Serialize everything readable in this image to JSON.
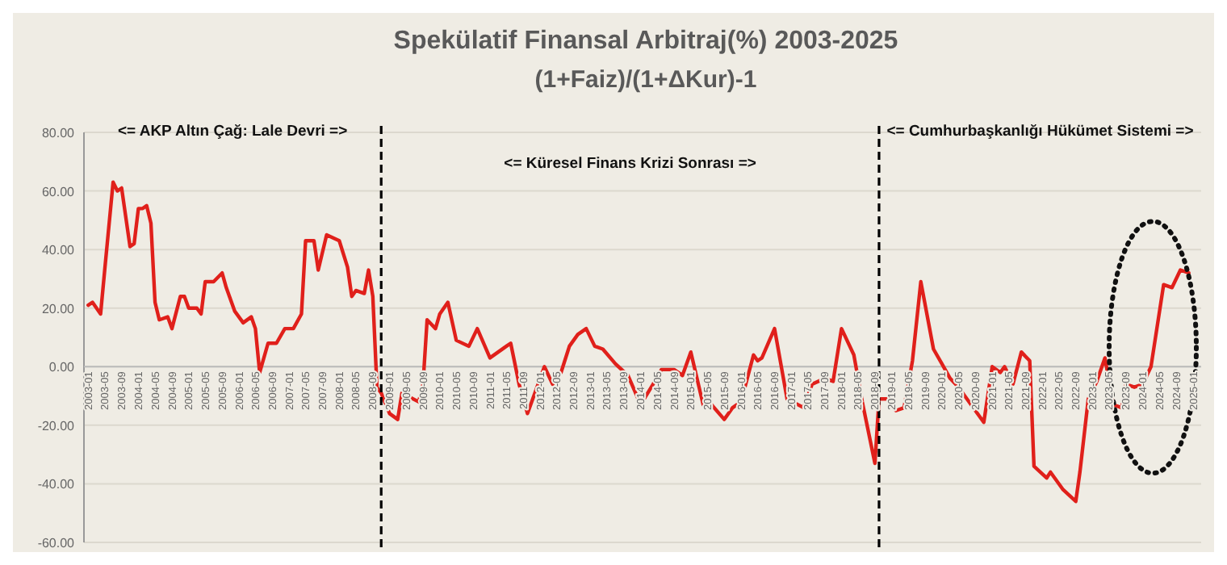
{
  "chart_data": {
    "type": "line",
    "title": "Spekülatif Finansal Arbitraj(%) 2003-2025",
    "subtitle": "(1+Faiz)/(1+ΔKur)-1",
    "annotations": [
      "<= AKP Altın Çağ: Lale Devri =>",
      "<= Küresel Finans Krizi Sonrası =>",
      "<= Cumhurbaşkanlığı Hükümet Sistemi =>"
    ],
    "x": [
      "2003-01",
      "2003-02",
      "2003-04",
      "2003-05",
      "2003-07",
      "2003-08",
      "2003-09",
      "2003-11",
      "2003-12",
      "2004-01",
      "2004-02",
      "2004-03",
      "2004-04",
      "2004-05",
      "2004-06",
      "2004-08",
      "2004-09",
      "2004-11",
      "2004-12",
      "2005-01",
      "2005-03",
      "2005-04",
      "2005-05",
      "2005-07",
      "2005-09",
      "2005-10",
      "2005-12",
      "2006-02",
      "2006-04",
      "2006-05",
      "2006-06",
      "2006-08",
      "2006-10",
      "2006-12",
      "2007-02",
      "2007-04",
      "2007-05",
      "2007-07",
      "2007-08",
      "2007-10",
      "2008-01",
      "2008-03",
      "2008-04",
      "2008-05",
      "2008-07",
      "2008-08",
      "2008-09",
      "2008-10",
      "2008-11",
      "2009-01",
      "2009-03",
      "2009-04",
      "2009-08",
      "2009-09",
      "2009-10",
      "2009-12",
      "2010-01",
      "2010-03",
      "2010-05",
      "2010-08",
      "2010-10",
      "2011-01",
      "2011-05",
      "2011-06",
      "2011-08",
      "2011-10",
      "2012-02",
      "2012-04",
      "2012-06",
      "2012-08",
      "2012-10",
      "2012-12",
      "2013-02",
      "2013-04",
      "2013-07",
      "2013-10",
      "2014-01",
      "2014-04",
      "2014-06",
      "2014-09",
      "2014-11",
      "2015-01",
      "2015-04",
      "2015-06",
      "2015-09",
      "2015-11",
      "2016-01",
      "2016-04",
      "2016-05",
      "2016-06",
      "2016-09",
      "2016-12",
      "2017-04",
      "2017-06",
      "2017-09",
      "2017-11",
      "2018-01",
      "2018-04",
      "2018-06",
      "2018-09",
      "2018-10",
      "2018-12",
      "2019-02",
      "2019-04",
      "2019-06",
      "2019-08",
      "2019-11",
      "2020-01",
      "2020-03",
      "2020-05",
      "2020-08",
      "2020-11",
      "2021-01",
      "2021-03",
      "2021-04",
      "2021-06",
      "2021-08",
      "2021-10",
      "2021-11",
      "2022-02",
      "2022-03",
      "2022-06",
      "2022-09",
      "2022-10",
      "2022-12",
      "2023-02",
      "2023-04",
      "2023-06",
      "2023-08",
      "2023-09",
      "2023-11",
      "2024-01",
      "2024-03",
      "2024-06",
      "2024-08",
      "2024-10",
      "2024-12"
    ],
    "series": [
      {
        "color": "#e0201b",
        "values": [
          21,
          22,
          18,
          33,
          63,
          60,
          61,
          41,
          42,
          54,
          54,
          55,
          49,
          22,
          16,
          17,
          13,
          24,
          24,
          20,
          20,
          18,
          29,
          29,
          32,
          27,
          19,
          15,
          17,
          13,
          -2,
          8,
          8,
          13,
          13,
          18,
          43,
          43,
          33,
          45,
          43,
          34,
          24,
          26,
          25,
          33,
          24,
          -7,
          -9,
          -16,
          -18,
          -9,
          -12,
          -6,
          16,
          13,
          18,
          22,
          9,
          7,
          13,
          3,
          7,
          8,
          -6,
          -16,
          0,
          -6,
          -2,
          7,
          11,
          13,
          7,
          6,
          1,
          -3,
          -13,
          -6,
          -1,
          -1,
          -3,
          5,
          -13,
          -13,
          -18,
          -14,
          -12,
          4,
          2,
          3,
          13,
          -11,
          -14,
          -6,
          -4,
          -5,
          13,
          4,
          -12,
          -33,
          -11,
          -11,
          -15,
          -14,
          2,
          29,
          6,
          1,
          -4,
          -7,
          -13,
          -19,
          0,
          -2,
          0,
          -6,
          5,
          2,
          -34,
          -38,
          -36,
          -42,
          -46,
          -36,
          -11,
          -5,
          3,
          -13,
          -14,
          -6,
          -7,
          -6,
          0,
          28,
          27,
          33,
          32
        ]
      }
    ],
    "xlim": [
      "2002-12",
      "2025-03"
    ],
    "xticks": [
      "2003-01",
      "2003-05",
      "2003-09",
      "2004-01",
      "2004-05",
      "2004-09",
      "2005-01",
      "2005-05",
      "2005-09",
      "2006-01",
      "2006-05",
      "2006-09",
      "2007-01",
      "2007-05",
      "2007-09",
      "2008-01",
      "2008-05",
      "2008-09",
      "2009-01",
      "2009-05",
      "2009-09",
      "2010-01",
      "2010-05",
      "2010-09",
      "2011-01",
      "2011-05",
      "2011-09",
      "2012-01",
      "2012-05",
      "2012-09",
      "2013-01",
      "2013-05",
      "2013-09",
      "2014-01",
      "2014-05",
      "2014-09",
      "2015-01",
      "2015-05",
      "2015-09",
      "2016-01",
      "2016-05",
      "2016-09",
      "2017-01",
      "2017-05",
      "2017-09",
      "2018-01",
      "2018-05",
      "2018-09",
      "2019-01",
      "2019-05",
      "2019-09",
      "2020-01",
      "2020-05",
      "2020-09",
      "2021-01",
      "2021-05",
      "2021-09",
      "2022-01",
      "2022-05",
      "2022-09",
      "2023-01",
      "2023-05",
      "2023-09",
      "2024-01",
      "2024-05",
      "2024-09",
      "2025-01"
    ],
    "ylim": [
      -60,
      80
    ],
    "yticks": [
      {
        "value": -60,
        "label": "-60.00"
      },
      {
        "value": -40,
        "label": "-40.00"
      },
      {
        "value": -20,
        "label": "-20.00"
      },
      {
        "value": 0,
        "label": "0.00"
      },
      {
        "value": 20,
        "label": "20.00"
      },
      {
        "value": 40,
        "label": "40.00"
      },
      {
        "value": 60,
        "label": "60.00"
      },
      {
        "value": 80,
        "label": "80.00"
      }
    ],
    "ref_lines": [
      {
        "axis": "x",
        "value": "2008-11",
        "color": "#000000",
        "line_style": "dashed"
      },
      {
        "axis": "x",
        "value": "2018-10",
        "color": "#000000",
        "line_style": "dashed"
      }
    ],
    "grid": "y",
    "marker": "none",
    "line_style": "solid"
  }
}
